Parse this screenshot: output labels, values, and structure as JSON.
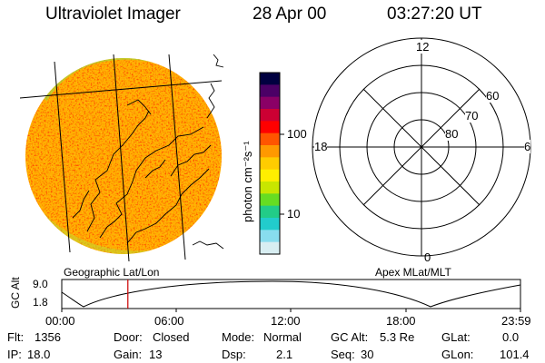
{
  "header": {
    "title": "Ultraviolet Imager",
    "date": "28 Apr 00",
    "time": "03:27:20 UT"
  },
  "imager": {
    "left_caption": "Geographic Lat/Lon",
    "right_caption": "Apex MLat/MLT"
  },
  "colorbar": {
    "unit_label": "photon cm⁻²s⁻¹",
    "ticks": [
      "100",
      "10"
    ],
    "colors": [
      "#000040",
      "#4b0066",
      "#8a0066",
      "#cc0033",
      "#ff0000",
      "#ff5500",
      "#ff9900",
      "#ffcc00",
      "#ffee00",
      "#c8e600",
      "#66dd22",
      "#22cc88",
      "#22cccc",
      "#88ddee",
      "#d8eef2"
    ]
  },
  "polar": {
    "mlt_labels": {
      "top": "12",
      "right": "6",
      "bottom": "0",
      "left": "18"
    },
    "mlat_labels": [
      "60",
      "70",
      "80"
    ]
  },
  "altitude_plot": {
    "ylabel": "GC Alt",
    "yticks": [
      "9.0",
      "1.8"
    ],
    "xticks": [
      "00:00",
      "06:00",
      "12:00",
      "18:00",
      "23:59"
    ],
    "current_time_hours": 3.456
  },
  "info": {
    "row1": {
      "flt_label": "Flt:",
      "flt_value": "1356",
      "door_label": "Door:",
      "door_value": "Closed",
      "mode_label": "Mode:",
      "mode_value": "Normal",
      "gcalt_label": "GC Alt:",
      "gcalt_value": "5.3 Re",
      "glat_label": "GLat:",
      "glat_value": "0.0"
    },
    "row2": {
      "ip_label": "IP:",
      "ip_value": "18.0",
      "gain_label": "Gain:",
      "gain_value": "13",
      "dsp_label": "Dsp:",
      "dsp_value": "2.1",
      "seq_label": "Seq:",
      "seq_value": "30",
      "glon_label": "GLon:",
      "glon_value": "101.4"
    }
  }
}
